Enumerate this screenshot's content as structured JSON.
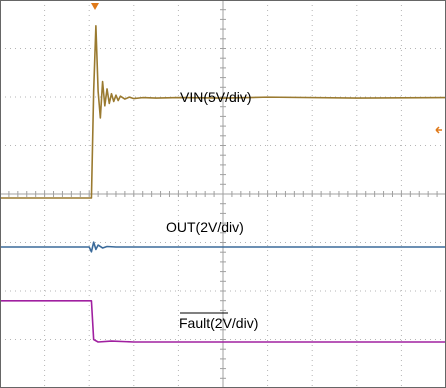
{
  "chart_data": {
    "type": "line",
    "title": "",
    "xlabel": "",
    "ylabel": "",
    "grid": true,
    "divisions": {
      "x": 10,
      "y": 8
    },
    "xlim": [
      0,
      10
    ],
    "ylim": [
      0,
      8
    ],
    "trigger_marker_color": "#e07a1a",
    "series": [
      {
        "name": "VIN(5V/div)",
        "label_overline": false,
        "color": "#9a7a30",
        "x": [
          0,
          2.05,
          2.1,
          2.15,
          2.2,
          2.25,
          2.3,
          2.35,
          2.4,
          2.45,
          2.5,
          2.55,
          2.6,
          2.65,
          2.7,
          2.8,
          2.9,
          3.0,
          3.2,
          3.5,
          4.0,
          5.0,
          6.0,
          8.0,
          10.0
        ],
        "y": [
          0.0,
          0.0,
          2.2,
          3.55,
          2.2,
          1.65,
          2.4,
          1.9,
          2.25,
          1.95,
          2.15,
          1.99,
          2.12,
          2.01,
          2.1,
          2.04,
          2.08,
          2.05,
          2.07,
          2.06,
          2.07,
          2.06,
          2.08,
          2.06,
          2.07
        ]
      },
      {
        "name": "OUT(2V/div)",
        "label_overline": false,
        "color": "#3a6a9a",
        "x": [
          0,
          2.0,
          2.05,
          2.1,
          2.15,
          2.2,
          2.3,
          2.4,
          2.6,
          3.0,
          5.0,
          8.0,
          10.0
        ],
        "y": [
          0.0,
          0.0,
          -0.1,
          0.1,
          -0.05,
          0.04,
          -0.02,
          0.01,
          0.0,
          0.0,
          0.0,
          0.0,
          0.0
        ]
      },
      {
        "name": "Fault(2V/div)",
        "label_overline": true,
        "color": "#a020a0",
        "x": [
          0,
          2.05,
          2.1,
          2.2,
          2.5,
          3.0,
          5.0,
          8.0,
          10.0
        ],
        "y": [
          0.85,
          0.85,
          0.05,
          0.0,
          0.02,
          0.0,
          0.0,
          0.0,
          0.0
        ]
      }
    ]
  }
}
